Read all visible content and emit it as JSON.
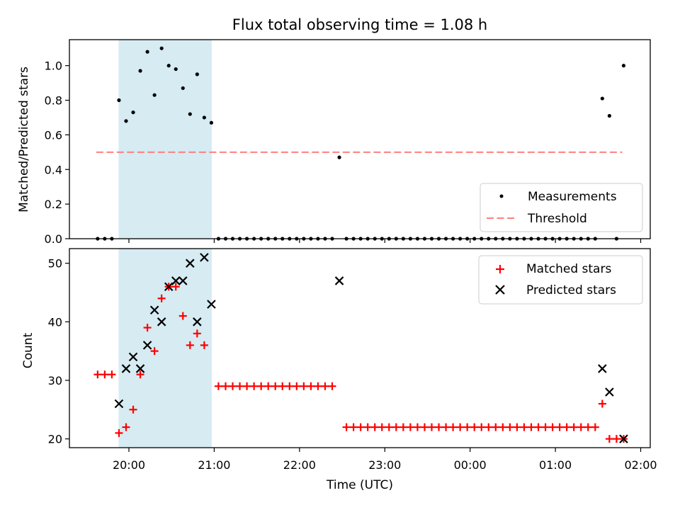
{
  "chart_data": [
    {
      "type": "scatter",
      "title": "Flux total observing time = 1.08 h",
      "ylabel": "Matched/Predicted stars",
      "ylim": [
        0,
        1.15
      ],
      "yticks": [
        "0.0",
        "0.2",
        "0.4",
        "0.6",
        "0.8",
        "1.0"
      ],
      "ytick_values": [
        0,
        0.2,
        0.4,
        0.6,
        0.8,
        1.0
      ],
      "highlight_span": [
        "19:53",
        "20:58"
      ],
      "legend": {
        "placement": "lower-right",
        "entries": [
          "Measurements",
          "Threshold"
        ]
      },
      "threshold": {
        "name": "Threshold",
        "value": 0.5,
        "x_range": [
          "19:38",
          "01:46"
        ],
        "color": "#ff7f7f"
      },
      "series": [
        {
          "name": "Measurements",
          "marker": "dot",
          "color": "#000000",
          "points": [
            [
              "19:38",
              0
            ],
            [
              "19:43",
              0
            ],
            [
              "19:48",
              0
            ],
            [
              "19:53",
              0.8
            ],
            [
              "19:58",
              0.68
            ],
            [
              "20:03",
              0.73
            ],
            [
              "20:08",
              0.97
            ],
            [
              "20:13",
              1.08
            ],
            [
              "20:18",
              0.83
            ],
            [
              "20:23",
              1.1
            ],
            [
              "20:28",
              1.0
            ],
            [
              "20:33",
              0.98
            ],
            [
              "20:38",
              0.87
            ],
            [
              "20:43",
              0.72
            ],
            [
              "20:48",
              0.95
            ],
            [
              "20:53",
              0.7
            ],
            [
              "20:58",
              0.67
            ],
            [
              "21:03",
              0
            ],
            [
              "21:08",
              0
            ],
            [
              "21:13",
              0
            ],
            [
              "21:18",
              0
            ],
            [
              "21:23",
              0
            ],
            [
              "21:28",
              0
            ],
            [
              "21:33",
              0
            ],
            [
              "21:38",
              0
            ],
            [
              "21:43",
              0
            ],
            [
              "21:48",
              0
            ],
            [
              "21:53",
              0
            ],
            [
              "21:58",
              0
            ],
            [
              "22:03",
              0
            ],
            [
              "22:08",
              0
            ],
            [
              "22:13",
              0
            ],
            [
              "22:18",
              0
            ],
            [
              "22:23",
              0
            ],
            [
              "22:28",
              0.47
            ],
            [
              "22:33",
              0
            ],
            [
              "22:38",
              0
            ],
            [
              "22:43",
              0
            ],
            [
              "22:48",
              0
            ],
            [
              "22:53",
              0
            ],
            [
              "22:58",
              0
            ],
            [
              "23:03",
              0
            ],
            [
              "23:08",
              0
            ],
            [
              "23:13",
              0
            ],
            [
              "23:18",
              0
            ],
            [
              "23:23",
              0
            ],
            [
              "23:28",
              0
            ],
            [
              "23:33",
              0
            ],
            [
              "23:38",
              0
            ],
            [
              "23:43",
              0
            ],
            [
              "23:48",
              0
            ],
            [
              "23:53",
              0
            ],
            [
              "23:58",
              0
            ],
            [
              "00:03",
              0
            ],
            [
              "00:08",
              0
            ],
            [
              "00:13",
              0
            ],
            [
              "00:18",
              0
            ],
            [
              "00:23",
              0
            ],
            [
              "00:28",
              0
            ],
            [
              "00:33",
              0
            ],
            [
              "00:38",
              0
            ],
            [
              "00:43",
              0
            ],
            [
              "00:48",
              0
            ],
            [
              "00:53",
              0
            ],
            [
              "00:58",
              0
            ],
            [
              "01:03",
              0
            ],
            [
              "01:08",
              0
            ],
            [
              "01:13",
              0
            ],
            [
              "01:18",
              0
            ],
            [
              "01:23",
              0
            ],
            [
              "01:28",
              0
            ],
            [
              "01:33",
              0.81
            ],
            [
              "01:38",
              0.71
            ],
            [
              "01:43",
              0
            ],
            [
              "01:48",
              1.0
            ]
          ]
        }
      ]
    },
    {
      "type": "scatter",
      "xlabel": "Time (UTC)",
      "ylabel": "Count",
      "ylim": [
        18.5,
        52.5
      ],
      "yticks": [
        "20",
        "30",
        "40",
        "50"
      ],
      "ytick_values": [
        20,
        30,
        40,
        50
      ],
      "xticks": [
        "20:00",
        "21:00",
        "22:00",
        "23:00",
        "00:00",
        "01:00",
        "02:00"
      ],
      "xlim": [
        "19:21",
        "02:06"
      ],
      "highlight_span": [
        "19:53",
        "20:58"
      ],
      "legend": {
        "placement": "upper-right",
        "entries": [
          "Matched stars",
          "Predicted stars"
        ]
      },
      "series": [
        {
          "name": "Matched stars",
          "marker": "plus",
          "color": "#ff0000",
          "points": [
            [
              "19:38",
              31
            ],
            [
              "19:43",
              31
            ],
            [
              "19:48",
              31
            ],
            [
              "19:53",
              21
            ],
            [
              "19:58",
              22
            ],
            [
              "20:03",
              25
            ],
            [
              "20:08",
              31
            ],
            [
              "20:13",
              39
            ],
            [
              "20:18",
              35
            ],
            [
              "20:23",
              44
            ],
            [
              "20:28",
              46
            ],
            [
              "20:33",
              46
            ],
            [
              "20:38",
              41
            ],
            [
              "20:43",
              36
            ],
            [
              "20:48",
              38
            ],
            [
              "20:53",
              36
            ],
            [
              "21:03",
              29
            ],
            [
              "21:08",
              29
            ],
            [
              "21:13",
              29
            ],
            [
              "21:18",
              29
            ],
            [
              "21:23",
              29
            ],
            [
              "21:28",
              29
            ],
            [
              "21:33",
              29
            ],
            [
              "21:38",
              29
            ],
            [
              "21:43",
              29
            ],
            [
              "21:48",
              29
            ],
            [
              "21:53",
              29
            ],
            [
              "21:58",
              29
            ],
            [
              "22:03",
              29
            ],
            [
              "22:08",
              29
            ],
            [
              "22:13",
              29
            ],
            [
              "22:18",
              29
            ],
            [
              "22:23",
              29
            ],
            [
              "22:33",
              22
            ],
            [
              "22:38",
              22
            ],
            [
              "22:43",
              22
            ],
            [
              "22:48",
              22
            ],
            [
              "22:53",
              22
            ],
            [
              "22:58",
              22
            ],
            [
              "23:03",
              22
            ],
            [
              "23:08",
              22
            ],
            [
              "23:13",
              22
            ],
            [
              "23:18",
              22
            ],
            [
              "23:23",
              22
            ],
            [
              "23:28",
              22
            ],
            [
              "23:33",
              22
            ],
            [
              "23:38",
              22
            ],
            [
              "23:43",
              22
            ],
            [
              "23:48",
              22
            ],
            [
              "23:53",
              22
            ],
            [
              "23:58",
              22
            ],
            [
              "00:03",
              22
            ],
            [
              "00:08",
              22
            ],
            [
              "00:13",
              22
            ],
            [
              "00:18",
              22
            ],
            [
              "00:23",
              22
            ],
            [
              "00:28",
              22
            ],
            [
              "00:33",
              22
            ],
            [
              "00:38",
              22
            ],
            [
              "00:43",
              22
            ],
            [
              "00:48",
              22
            ],
            [
              "00:53",
              22
            ],
            [
              "00:58",
              22
            ],
            [
              "01:03",
              22
            ],
            [
              "01:08",
              22
            ],
            [
              "01:13",
              22
            ],
            [
              "01:18",
              22
            ],
            [
              "01:23",
              22
            ],
            [
              "01:28",
              22
            ],
            [
              "01:33",
              26
            ],
            [
              "01:38",
              20
            ],
            [
              "01:43",
              20
            ],
            [
              "01:48",
              20
            ]
          ]
        },
        {
          "name": "Predicted stars",
          "marker": "x",
          "color": "#000000",
          "points": [
            [
              "19:53",
              26
            ],
            [
              "19:58",
              32
            ],
            [
              "20:03",
              34
            ],
            [
              "20:08",
              32
            ],
            [
              "20:13",
              36
            ],
            [
              "20:18",
              42
            ],
            [
              "20:23",
              40
            ],
            [
              "20:28",
              46
            ],
            [
              "20:33",
              47
            ],
            [
              "20:38",
              47
            ],
            [
              "20:43",
              50
            ],
            [
              "20:48",
              40
            ],
            [
              "20:53",
              51
            ],
            [
              "20:58",
              43
            ],
            [
              "22:28",
              47
            ],
            [
              "01:33",
              32
            ],
            [
              "01:38",
              28
            ],
            [
              "01:48",
              20
            ]
          ]
        }
      ]
    }
  ]
}
